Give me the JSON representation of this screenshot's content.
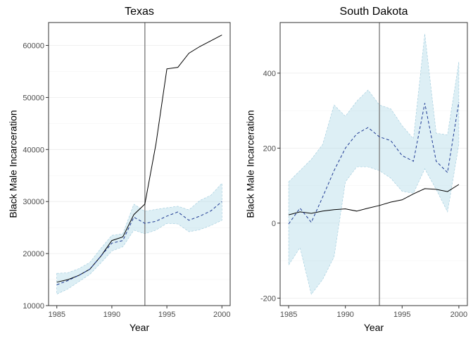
{
  "chart_data": [
    {
      "type": "line",
      "title": "Texas",
      "xlabel": "Year",
      "ylabel": "Black Male Incarceration",
      "xlim": [
        1984.25,
        2000.75
      ],
      "ylim": [
        10000,
        64400
      ],
      "x_ticks": [
        1985,
        1990,
        1995,
        2000
      ],
      "y_ticks": [
        10000,
        20000,
        30000,
        40000,
        50000,
        60000
      ],
      "y_tick_labels": [
        "10000",
        "20000",
        "30000",
        "40000",
        "50000",
        "60000"
      ],
      "intervention_year": 1993,
      "grid": true,
      "series": [
        {
          "style": "solid",
          "color": "#000000",
          "x": [
            1985,
            1986,
            1987,
            1988,
            1989,
            1990,
            1991,
            1992,
            1993,
            1994,
            1995,
            1996,
            1997,
            1998,
            1999,
            2000
          ],
          "y": [
            14500,
            15000,
            15800,
            17000,
            19500,
            22500,
            23200,
            27500,
            29500,
            41000,
            55500,
            55800,
            58500,
            59800,
            60900,
            62000
          ]
        },
        {
          "style": "dashed",
          "color": "#1f3a93",
          "x": [
            1985,
            1986,
            1987,
            1988,
            1989,
            1990,
            1991,
            1992,
            1993,
            1994,
            1995,
            1996,
            1997,
            1998,
            1999,
            2000
          ],
          "y": [
            14000,
            14800,
            15800,
            17000,
            19500,
            22000,
            22500,
            27000,
            25800,
            26200,
            27200,
            28000,
            26400,
            27200,
            28200,
            30000
          ]
        }
      ],
      "band": {
        "color": "#add8e6",
        "x": [
          1985,
          1986,
          1987,
          1988,
          1989,
          1990,
          1991,
          1992,
          1993,
          1994,
          1995,
          1996,
          1997,
          1998,
          1999,
          2000
        ],
        "lower": [
          12200,
          13200,
          14600,
          16000,
          18200,
          20500,
          21300,
          24500,
          23800,
          24500,
          25800,
          25700,
          24200,
          24600,
          25400,
          26400
        ],
        "upper": [
          16200,
          16300,
          17100,
          18300,
          21000,
          23500,
          23800,
          29500,
          28100,
          28500,
          28800,
          29100,
          28400,
          30200,
          31200,
          33500
        ]
      }
    },
    {
      "type": "line",
      "title": "South Dakota",
      "xlabel": "Year",
      "ylabel": "Black Male Incarceration",
      "xlim": [
        1984.25,
        2000.75
      ],
      "ylim": [
        -220,
        535
      ],
      "x_ticks": [
        1985,
        1990,
        1995,
        2000
      ],
      "y_ticks": [
        -200,
        0,
        200,
        400
      ],
      "y_tick_labels": [
        "-200",
        "0",
        "200",
        "400"
      ],
      "intervention_year": 1993,
      "grid": true,
      "series": [
        {
          "style": "solid",
          "color": "#000000",
          "x": [
            1985,
            1986,
            1987,
            1988,
            1989,
            1990,
            1991,
            1992,
            1993,
            1994,
            1995,
            1996,
            1997,
            1998,
            1999,
            2000
          ],
          "y": [
            22,
            30,
            26,
            32,
            36,
            38,
            32,
            40,
            47,
            56,
            62,
            78,
            92,
            90,
            84,
            103
          ]
        },
        {
          "style": "dashed",
          "color": "#1f3a93",
          "x": [
            1985,
            1986,
            1987,
            1988,
            1989,
            1990,
            1991,
            1992,
            1993,
            1994,
            1995,
            1996,
            1997,
            1998,
            1999,
            2000
          ],
          "y": [
            -2,
            40,
            2,
            70,
            140,
            200,
            238,
            255,
            230,
            220,
            180,
            165,
            320,
            165,
            135,
            323
          ]
        }
      ],
      "band": {
        "color": "#add8e6",
        "x": [
          1985,
          1986,
          1987,
          1988,
          1989,
          1990,
          1991,
          1992,
          1993,
          1994,
          1995,
          1996,
          1997,
          1998,
          1999,
          2000
        ],
        "lower": [
          -112,
          -65,
          -190,
          -150,
          -90,
          110,
          150,
          150,
          140,
          120,
          85,
          80,
          145,
          90,
          30,
          210
        ],
        "upper": [
          110,
          140,
          170,
          210,
          315,
          285,
          325,
          355,
          315,
          305,
          260,
          225,
          505,
          240,
          235,
          430
        ]
      }
    }
  ]
}
